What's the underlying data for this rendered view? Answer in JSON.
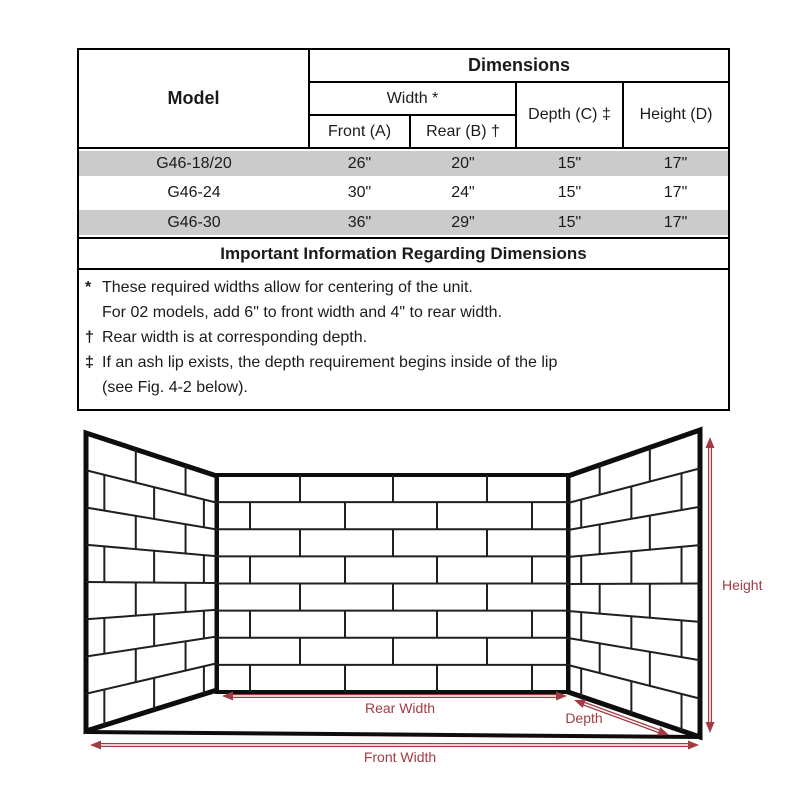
{
  "table": {
    "dimensions_header": "Dimensions",
    "model_header": "Model",
    "width_header": "Width *",
    "col_front": "Front (A)",
    "col_rear": "Rear (B) †",
    "col_depth": "Depth (C) ‡",
    "col_height": "Height (D)",
    "rows": [
      {
        "model": "G46-18/20",
        "front": "26\"",
        "rear": "20\"",
        "depth": "15\"",
        "height": "17\""
      },
      {
        "model": "G46-24",
        "front": "30\"",
        "rear": "24\"",
        "depth": "15\"",
        "height": "17\""
      },
      {
        "model": "G46-30",
        "front": "36\"",
        "rear": "29\"",
        "depth": "15\"",
        "height": "17\""
      }
    ],
    "info_header": "Important Information Regarding Dimensions",
    "notes": [
      {
        "symbol": "*",
        "lines": [
          "These required widths allow for centering of the unit.",
          "For 02 models, add 6\" to front width and 4\" to rear width."
        ]
      },
      {
        "symbol": "†",
        "lines": [
          "Rear width is at corresponding depth."
        ]
      },
      {
        "symbol": "‡",
        "lines": [
          "If an ash lip exists, the depth requirement begins inside of the lip",
          "(see Fig. 4-2 below)."
        ]
      }
    ]
  },
  "diagram": {
    "labels": {
      "rear_width": "Rear Width",
      "depth": "Depth",
      "front_width": "Front Width",
      "height": "Height"
    },
    "accent_color": "#a23b44",
    "row_colors": {
      "shaded": "#cbcbcb",
      "plain": "#ffffff"
    }
  }
}
